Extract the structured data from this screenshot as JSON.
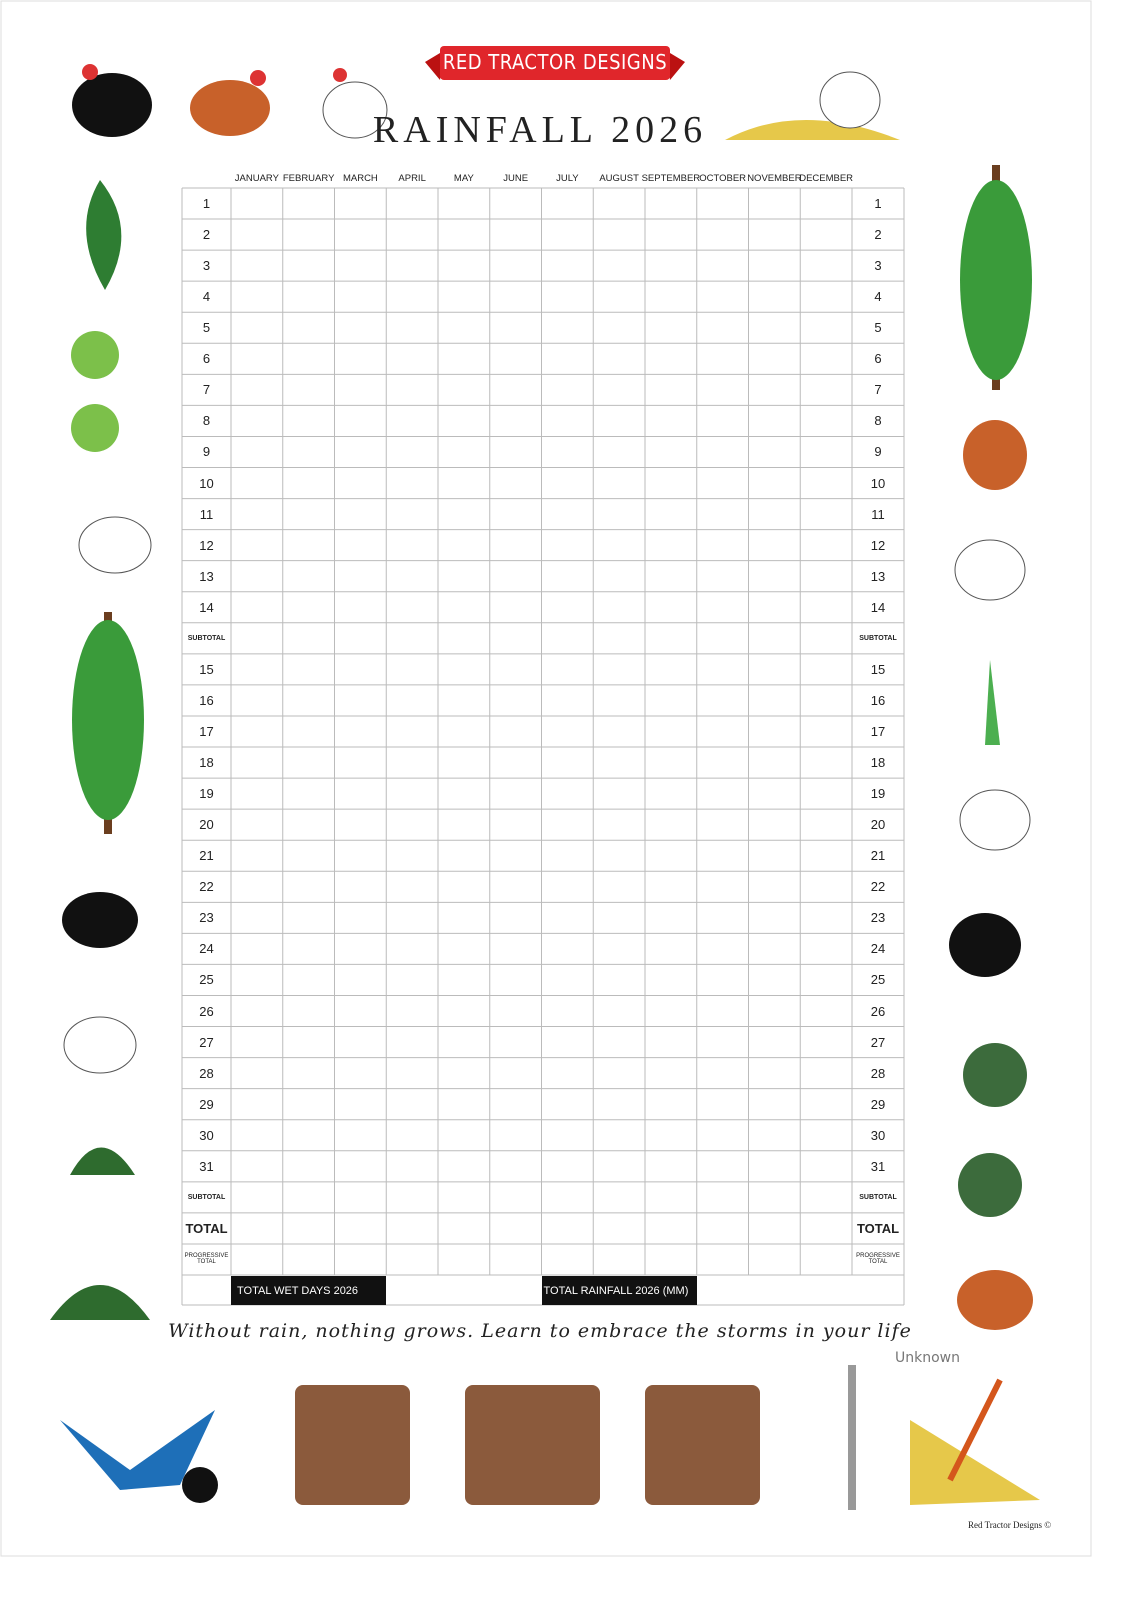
{
  "header": {
    "brand": "RED TRACTOR DESIGNS",
    "title": "RAINFALL 2026"
  },
  "table": {
    "months": [
      "JANUARY",
      "FEBRUARY",
      "MARCH",
      "APRIL",
      "MAY",
      "JUNE",
      "JULY",
      "AUGUST",
      "SEPTEMBER",
      "OCTOBER",
      "NOVEMBER",
      "DECEMBER"
    ],
    "rows": [
      "1",
      "2",
      "3",
      "4",
      "5",
      "6",
      "7",
      "8",
      "9",
      "10",
      "11",
      "12",
      "13",
      "14",
      "SUBTOTAL",
      "15",
      "16",
      "17",
      "18",
      "19",
      "20",
      "21",
      "22",
      "23",
      "24",
      "25",
      "26",
      "27",
      "28",
      "29",
      "30",
      "31",
      "SUBTOTAL",
      "TOTAL",
      "PROGRESSIVE TOTAL"
    ],
    "footer": {
      "wet_days": "TOTAL WET DAYS 2026",
      "rainfall": "TOTAL RAINFALL 2026 (MM)"
    }
  },
  "quote": {
    "text": "Without rain, nothing grows. Learn to embrace the storms in your life",
    "author": "Unknown"
  },
  "copyright": "Red Tractor Designs ©"
}
